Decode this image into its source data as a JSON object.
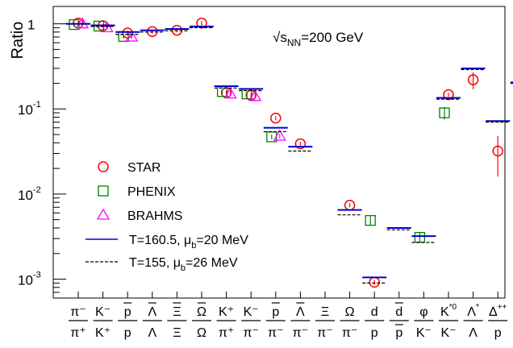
{
  "chart_data": {
    "type": "scatter",
    "title": "",
    "annotation": {
      "base": "√s",
      "sub": "NN",
      "rest": "=200 GeV"
    },
    "ylabel": "Ratio",
    "xlabel": "",
    "yscale": "log",
    "ylim": [
      0.0006,
      1.6
    ],
    "y_ticks": [
      {
        "value": 1,
        "label": "1",
        "exp": ""
      },
      {
        "value": 0.1,
        "label": "10",
        "exp": "-1"
      },
      {
        "value": 0.01,
        "label": "10",
        "exp": "-2"
      },
      {
        "value": 0.001,
        "label": "10",
        "exp": "-3"
      }
    ],
    "categories": [
      {
        "num": "π⁻",
        "den": "π⁺",
        "num_bar": false,
        "den_bar": false,
        "num_sup": "",
        "den_sup": ""
      },
      {
        "num": "K⁻",
        "den": "K⁺",
        "num_bar": false,
        "den_bar": false,
        "num_sup": "",
        "den_sup": ""
      },
      {
        "num": "p",
        "den": "p",
        "num_bar": true,
        "den_bar": false,
        "num_sup": "",
        "den_sup": ""
      },
      {
        "num": "Λ",
        "den": "Λ",
        "num_bar": true,
        "den_bar": false,
        "num_sup": "",
        "den_sup": ""
      },
      {
        "num": "Ξ",
        "den": "Ξ",
        "num_bar": true,
        "den_bar": false,
        "num_sup": "",
        "den_sup": ""
      },
      {
        "num": "Ω",
        "den": "Ω",
        "num_bar": true,
        "den_bar": false,
        "num_sup": "",
        "den_sup": ""
      },
      {
        "num": "K⁺",
        "den": "π⁺",
        "num_bar": false,
        "den_bar": false,
        "num_sup": "",
        "den_sup": ""
      },
      {
        "num": "K⁻",
        "den": "π⁻",
        "num_bar": false,
        "den_bar": false,
        "num_sup": "",
        "den_sup": ""
      },
      {
        "num": "p",
        "den": "π⁻",
        "num_bar": true,
        "den_bar": false,
        "num_sup": "",
        "den_sup": ""
      },
      {
        "num": "Λ",
        "den": "π⁻",
        "num_bar": true,
        "den_bar": false,
        "num_sup": "",
        "den_sup": ""
      },
      {
        "num": "Ξ",
        "den": "π⁻",
        "num_bar": false,
        "den_bar": false,
        "num_sup": "",
        "den_sup": ""
      },
      {
        "num": "Ω",
        "den": "π⁻",
        "num_bar": false,
        "den_bar": false,
        "num_sup": "",
        "den_sup": ""
      },
      {
        "num": "d",
        "den": "p",
        "num_bar": false,
        "den_bar": false,
        "num_sup": "",
        "den_sup": ""
      },
      {
        "num": "d",
        "den": "p",
        "num_bar": true,
        "den_bar": true,
        "num_sup": "",
        "den_sup": ""
      },
      {
        "num": "φ",
        "den": "K⁻",
        "num_bar": false,
        "den_bar": false,
        "num_sup": "",
        "den_sup": ""
      },
      {
        "num": "K",
        "den": "K⁻",
        "num_bar": false,
        "den_bar": false,
        "num_sup": "*0",
        "den_sup": ""
      },
      {
        "num": "Λ",
        "den": "Λ",
        "num_bar": false,
        "den_bar": false,
        "num_sup": "*",
        "den_sup": ""
      },
      {
        "num": "Δ",
        "den": "p",
        "num_bar": false,
        "den_bar": false,
        "num_sup": "++",
        "den_sup": ""
      }
    ],
    "series": [
      {
        "name": "STAR",
        "marker": "circle",
        "color": "#ff0000",
        "points": [
          {
            "x": 0,
            "y": 1.02,
            "lo": 0.96,
            "hi": 1.08
          },
          {
            "x": 1,
            "y": 0.95,
            "lo": 0.91,
            "hi": 0.99
          },
          {
            "x": 2,
            "y": 0.78,
            "lo": 0.73,
            "hi": 0.83
          },
          {
            "x": 3,
            "y": 0.81,
            "lo": 0.77,
            "hi": 0.85
          },
          {
            "x": 4,
            "y": 0.84,
            "lo": 0.8,
            "hi": 0.88
          },
          {
            "x": 5,
            "y": 1.02,
            "lo": 0.96,
            "hi": 1.08
          },
          {
            "x": 6,
            "y": 0.155,
            "lo": 0.145,
            "hi": 0.165
          },
          {
            "x": 7,
            "y": 0.145,
            "lo": 0.136,
            "hi": 0.154
          },
          {
            "x": 8,
            "y": 0.078,
            "lo": 0.074,
            "hi": 0.082
          },
          {
            "x": 9,
            "y": 0.039,
            "lo": 0.037,
            "hi": 0.041
          },
          {
            "x": 11,
            "y": 0.0074,
            "lo": 0.007,
            "hi": 0.0078
          },
          {
            "x": 12,
            "y": 0.00092,
            "lo": 0.00086,
            "hi": 0.00098
          },
          {
            "x": 15,
            "y": 0.147,
            "lo": 0.14,
            "hi": 0.154
          },
          {
            "x": 16,
            "y": 0.22,
            "lo": 0.17,
            "hi": 0.27
          },
          {
            "x": 17,
            "y": 0.032,
            "lo": 0.016,
            "hi": 0.048
          },
          {
            "x": 18,
            "y": 0.23,
            "lo": 0.22,
            "hi": 0.24
          }
        ]
      },
      {
        "name": "PHENIX",
        "marker": "square",
        "color": "#008000",
        "points": [
          {
            "x": 0,
            "y": 0.98,
            "lo": 0.93,
            "hi": 1.03
          },
          {
            "x": 1,
            "y": 0.94,
            "lo": 0.9,
            "hi": 0.98
          },
          {
            "x": 2,
            "y": 0.71,
            "lo": 0.67,
            "hi": 0.75
          },
          {
            "x": 6,
            "y": 0.16,
            "lo": 0.15,
            "hi": 0.17
          },
          {
            "x": 7,
            "y": 0.15,
            "lo": 0.14,
            "hi": 0.16
          },
          {
            "x": 8,
            "y": 0.047,
            "lo": 0.044,
            "hi": 0.05
          },
          {
            "x": 12,
            "y": 0.0049,
            "lo": 0.0043,
            "hi": 0.0055
          },
          {
            "x": 14,
            "y": 0.0031,
            "lo": 0.0027,
            "hi": 0.0035
          },
          {
            "x": 15,
            "y": 0.09,
            "lo": 0.075,
            "hi": 0.105
          }
        ]
      },
      {
        "name": "BRAHMS",
        "marker": "triangle",
        "color": "#ff00ff",
        "points": [
          {
            "x": 0,
            "y": 1.0,
            "lo": 0.95,
            "hi": 1.05
          },
          {
            "x": 1,
            "y": 0.9,
            "lo": 0.86,
            "hi": 0.94
          },
          {
            "x": 2,
            "y": 0.7,
            "lo": 0.66,
            "hi": 0.74
          },
          {
            "x": 6,
            "y": 0.15,
            "lo": 0.14,
            "hi": 0.16
          },
          {
            "x": 7,
            "y": 0.14,
            "lo": 0.13,
            "hi": 0.15
          },
          {
            "x": 8,
            "y": 0.048,
            "lo": 0.045,
            "hi": 0.051
          }
        ]
      },
      {
        "name": "T=160.5, μ_b=20 MeV",
        "legend_main": "T=160.5, μ",
        "legend_sub": "b",
        "legend_rest": "=20 MeV",
        "marker": "hline-solid",
        "color": "#0000cc",
        "points": [
          {
            "x": 0,
            "y": 1.0
          },
          {
            "x": 1,
            "y": 0.96
          },
          {
            "x": 2,
            "y": 0.8
          },
          {
            "x": 3,
            "y": 0.84
          },
          {
            "x": 4,
            "y": 0.87
          },
          {
            "x": 5,
            "y": 0.93
          },
          {
            "x": 6,
            "y": 0.185
          },
          {
            "x": 7,
            "y": 0.172
          },
          {
            "x": 8,
            "y": 0.06
          },
          {
            "x": 9,
            "y": 0.036
          },
          {
            "x": 11,
            "y": 0.0065
          },
          {
            "x": 12,
            "y": 0.00105
          },
          {
            "x": 13,
            "y": 0.004
          },
          {
            "x": 14,
            "y": 0.0032
          },
          {
            "x": 15,
            "y": 0.135
          },
          {
            "x": 16,
            "y": 0.3
          },
          {
            "x": 17,
            "y": 0.072
          },
          {
            "x": 18,
            "y": 0.205
          }
        ]
      },
      {
        "name": "T=155, μ_b=26 MeV",
        "legend_main": "T=155, μ",
        "legend_sub": "b",
        "legend_rest": "=26 MeV",
        "marker": "hline-dashed",
        "color": "#000000",
        "points": [
          {
            "x": 0,
            "y": 1.0
          },
          {
            "x": 1,
            "y": 0.93
          },
          {
            "x": 2,
            "y": 0.75
          },
          {
            "x": 3,
            "y": 0.8
          },
          {
            "x": 4,
            "y": 0.83
          },
          {
            "x": 5,
            "y": 0.9
          },
          {
            "x": 6,
            "y": 0.176
          },
          {
            "x": 7,
            "y": 0.164
          },
          {
            "x": 8,
            "y": 0.054
          },
          {
            "x": 9,
            "y": 0.032
          },
          {
            "x": 11,
            "y": 0.0057
          },
          {
            "x": 12,
            "y": 0.0009
          },
          {
            "x": 13,
            "y": 0.0038
          },
          {
            "x": 14,
            "y": 0.0027
          },
          {
            "x": 15,
            "y": 0.13
          },
          {
            "x": 16,
            "y": 0.29
          },
          {
            "x": 17,
            "y": 0.07
          },
          {
            "x": 18,
            "y": 0.2
          }
        ]
      }
    ],
    "legend": {
      "placement": "bottom-left",
      "entries": [
        "STAR",
        "PHENIX",
        "BRAHMS",
        "T=160.5, μ_b=20 MeV",
        "T=155, μ_b=26 MeV"
      ]
    },
    "grid": false
  }
}
